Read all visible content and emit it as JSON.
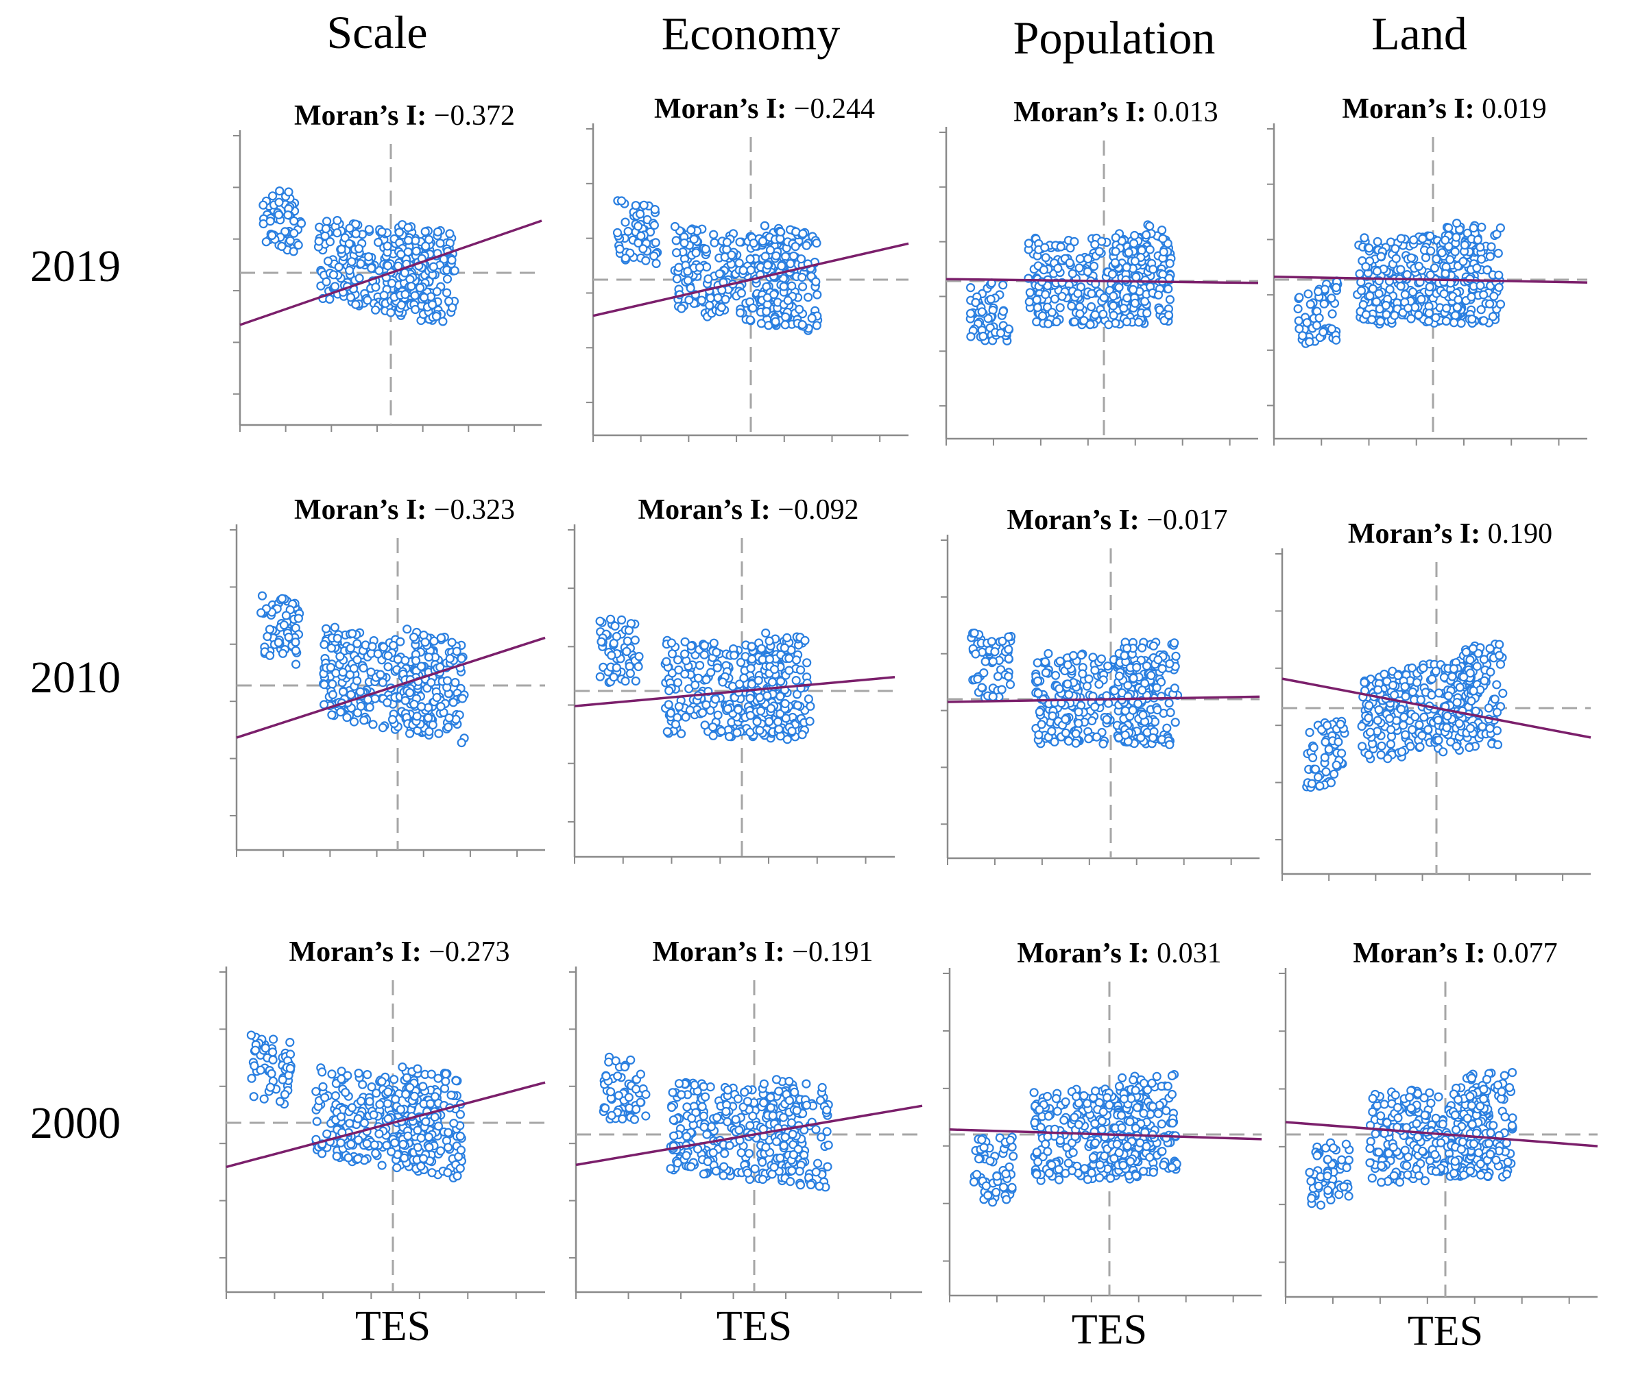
{
  "figure": {
    "columns": [
      "Scale",
      "Economy",
      "Population",
      "Land"
    ],
    "rows": [
      "2019",
      "2010",
      "2000"
    ],
    "x_label": "TES",
    "moran_label": "Moran’s I:"
  },
  "chart_data": [
    {
      "type": "scatter",
      "row": "2019",
      "column": "Scale",
      "moran_i": "−0.372",
      "slope": -0.372,
      "xlabel": "",
      "ylabel": ""
    },
    {
      "type": "scatter",
      "row": "2019",
      "column": "Economy",
      "moran_i": "−0.244",
      "slope": -0.244,
      "xlabel": "",
      "ylabel": ""
    },
    {
      "type": "scatter",
      "row": "2019",
      "column": "Population",
      "moran_i": "0.013",
      "slope": 0.013,
      "xlabel": "",
      "ylabel": ""
    },
    {
      "type": "scatter",
      "row": "2019",
      "column": "Land",
      "moran_i": "0.019",
      "slope": 0.019,
      "xlabel": "",
      "ylabel": ""
    },
    {
      "type": "scatter",
      "row": "2010",
      "column": "Scale",
      "moran_i": "−0.323",
      "slope": -0.323,
      "xlabel": "",
      "ylabel": ""
    },
    {
      "type": "scatter",
      "row": "2010",
      "column": "Economy",
      "moran_i": "−0.092",
      "slope": -0.092,
      "xlabel": "",
      "ylabel": ""
    },
    {
      "type": "scatter",
      "row": "2010",
      "column": "Population",
      "moran_i": "−0.017",
      "slope": -0.017,
      "xlabel": "",
      "ylabel": ""
    },
    {
      "type": "scatter",
      "row": "2010",
      "column": "Land",
      "moran_i": "0.190",
      "slope": 0.19,
      "xlabel": "",
      "ylabel": ""
    },
    {
      "type": "scatter",
      "row": "2000",
      "column": "Scale",
      "moran_i": "−0.273",
      "slope": -0.273,
      "xlabel": "TES",
      "ylabel": ""
    },
    {
      "type": "scatter",
      "row": "2000",
      "column": "Economy",
      "moran_i": "−0.191",
      "slope": -0.191,
      "xlabel": "TES",
      "ylabel": ""
    },
    {
      "type": "scatter",
      "row": "2000",
      "column": "Population",
      "moran_i": "0.031",
      "slope": 0.031,
      "xlabel": "TES",
      "ylabel": ""
    },
    {
      "type": "scatter",
      "row": "2000",
      "column": "Land",
      "moran_i": "0.077",
      "slope": 0.077,
      "xlabel": "TES",
      "ylabel": ""
    }
  ],
  "colors": {
    "points": "#2a7fe0",
    "regression_line": "#7b1f6b",
    "reference_lines": "#a6a6a6",
    "axes": "#8a8a8a"
  }
}
